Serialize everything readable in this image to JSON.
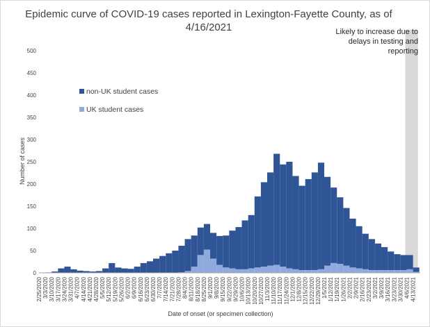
{
  "chart_data": {
    "type": "bar",
    "stacked": true,
    "title_lines": [
      "Epidemic curve of COVID-19 cases reported in Lexington-Fayette County, as of",
      "4/16/2021"
    ],
    "xlabel": "Date of onset (or specimen collection)",
    "ylabel": "Number of cases",
    "ylim": [
      0,
      500
    ],
    "yticks": [
      0,
      50,
      100,
      150,
      200,
      250,
      300,
      350,
      400,
      450,
      500
    ],
    "grid": false,
    "legend_position": "left-inside",
    "x_start": "2/25/2020",
    "x_end": "4/13/2021",
    "x_tick_labels": [
      "2/25/2020",
      "3/3/2020",
      "3/10/2020",
      "3/17/2020",
      "3/24/2020",
      "3/31/2020",
      "4/7/2020",
      "4/14/2020",
      "4/21/2020",
      "4/28/2020",
      "5/5/2020",
      "5/12/2020",
      "5/19/2020",
      "5/26/2020",
      "6/2/2020",
      "6/9/2020",
      "6/16/2020",
      "6/23/2020",
      "6/30/2020",
      "7/7/2020",
      "7/14/2020",
      "7/21/2020",
      "7/28/2020",
      "8/4/2020",
      "8/11/2020",
      "8/18/2020",
      "8/25/2020",
      "9/1/2020",
      "9/8/2020",
      "9/15/2020",
      "9/22/2020",
      "9/29/2020",
      "10/6/2020",
      "10/13/2020",
      "10/20/2020",
      "10/27/2020",
      "11/3/2020",
      "11/10/2020",
      "11/17/2020",
      "11/24/2020",
      "12/1/2020",
      "12/8/2020",
      "12/15/2020",
      "12/22/2020",
      "12/29/2020",
      "1/5/2021",
      "1/12/2021",
      "1/19/2021",
      "1/26/2021",
      "2/2/2021",
      "2/9/2021",
      "2/16/2021",
      "2/23/2021",
      "3/2/2021",
      "3/9/2021",
      "3/16/2021",
      "3/23/2021",
      "3/30/2021",
      "4/6/2021",
      "4/13/2021"
    ],
    "series": [
      {
        "name": "non-UK student cases",
        "color": "#2f5597"
      },
      {
        "name": "UK student cases",
        "color": "#8faadc"
      }
    ],
    "weekly_values": [
      [
        0,
        0
      ],
      [
        1,
        0
      ],
      [
        3,
        0
      ],
      [
        10,
        0
      ],
      [
        14,
        0
      ],
      [
        8,
        0
      ],
      [
        5,
        0
      ],
      [
        4,
        0
      ],
      [
        3,
        0
      ],
      [
        4,
        0
      ],
      [
        10,
        0
      ],
      [
        22,
        0
      ],
      [
        12,
        0
      ],
      [
        10,
        0
      ],
      [
        9,
        0
      ],
      [
        14,
        0
      ],
      [
        22,
        0
      ],
      [
        26,
        0
      ],
      [
        32,
        0
      ],
      [
        38,
        0
      ],
      [
        44,
        0
      ],
      [
        50,
        0
      ],
      [
        60,
        1
      ],
      [
        72,
        4
      ],
      [
        70,
        14
      ],
      [
        62,
        40
      ],
      [
        58,
        52
      ],
      [
        58,
        32
      ],
      [
        65,
        18
      ],
      [
        72,
        12
      ],
      [
        85,
        10
      ],
      [
        95,
        8
      ],
      [
        110,
        8
      ],
      [
        120,
        10
      ],
      [
        160,
        12
      ],
      [
        190,
        14
      ],
      [
        210,
        16
      ],
      [
        250,
        18
      ],
      [
        230,
        14
      ],
      [
        240,
        10
      ],
      [
        210,
        8
      ],
      [
        190,
        6
      ],
      [
        205,
        6
      ],
      [
        220,
        6
      ],
      [
        240,
        8
      ],
      [
        200,
        16
      ],
      [
        170,
        22
      ],
      [
        150,
        20
      ],
      [
        130,
        16
      ],
      [
        110,
        12
      ],
      [
        95,
        10
      ],
      [
        80,
        8
      ],
      [
        70,
        6
      ],
      [
        60,
        6
      ],
      [
        52,
        6
      ],
      [
        42,
        6
      ],
      [
        36,
        6
      ],
      [
        34,
        6
      ],
      [
        32,
        8
      ],
      [
        10,
        2
      ]
    ],
    "annotation": {
      "lines": [
        "Likely to increase due to",
        "delays in testing and",
        "reporting"
      ],
      "range": [
        "4/6/2021",
        "4/13/2021"
      ],
      "color": "#d9d9d9"
    }
  }
}
